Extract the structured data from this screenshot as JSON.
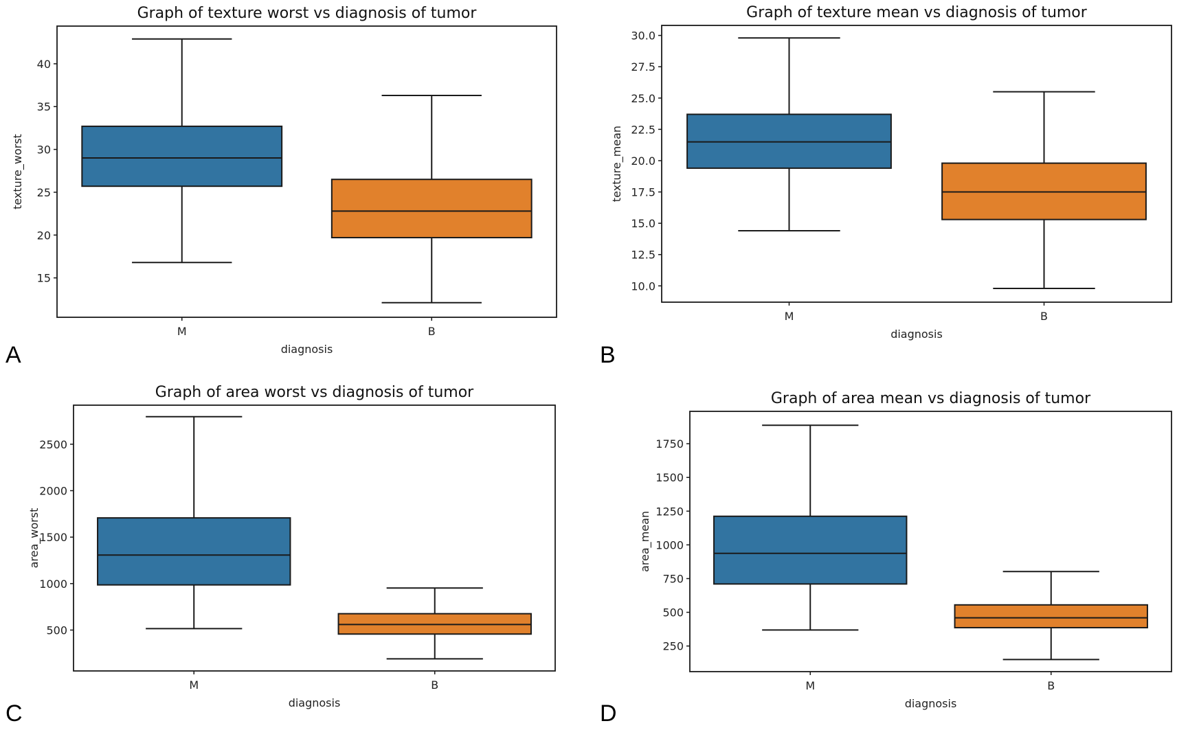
{
  "figure": {
    "panel_letters": [
      "A",
      "B",
      "C",
      "D"
    ]
  },
  "colors": {
    "M": "#3274a1",
    "B": "#e1812c",
    "line": "#1a1a1a"
  },
  "chart_data": [
    {
      "id": "A",
      "type": "box",
      "title": "Graph of texture worst vs diagnosis of tumor",
      "xlabel": "diagnosis",
      "ylabel": "texture_worst",
      "categories": [
        "M",
        "B"
      ],
      "ylim": [
        10.4,
        44.4
      ],
      "yticks": [
        15,
        20,
        25,
        30,
        35,
        40
      ],
      "ytick_labels": [
        "15",
        "20",
        "25",
        "30",
        "35",
        "40"
      ],
      "boxes": [
        {
          "category": "M",
          "whisker_low": 16.8,
          "q1": 25.7,
          "median": 29.0,
          "q3": 32.7,
          "whisker_high": 42.9
        },
        {
          "category": "B",
          "whisker_low": 12.1,
          "q1": 19.7,
          "median": 22.8,
          "q3": 26.5,
          "whisker_high": 36.3
        }
      ]
    },
    {
      "id": "B",
      "type": "box",
      "title": "Graph of texture mean vs diagnosis of tumor",
      "xlabel": "diagnosis",
      "ylabel": "texture_mean",
      "categories": [
        "M",
        "B"
      ],
      "ylim": [
        8.7,
        30.8
      ],
      "yticks": [
        10.0,
        12.5,
        15.0,
        17.5,
        20.0,
        22.5,
        25.0,
        27.5,
        30.0
      ],
      "ytick_labels": [
        "10.0",
        "12.5",
        "15.0",
        "17.5",
        "20.0",
        "22.5",
        "25.0",
        "27.5",
        "30.0"
      ],
      "boxes": [
        {
          "category": "M",
          "whisker_low": 14.4,
          "q1": 19.4,
          "median": 21.5,
          "q3": 23.7,
          "whisker_high": 29.8
        },
        {
          "category": "B",
          "whisker_low": 9.8,
          "q1": 15.3,
          "median": 17.5,
          "q3": 19.8,
          "whisker_high": 25.5
        }
      ]
    },
    {
      "id": "C",
      "type": "box",
      "title": "Graph of area worst vs diagnosis of tumor",
      "xlabel": "diagnosis",
      "ylabel": "area_worst",
      "categories": [
        "M",
        "B"
      ],
      "ylim": [
        60,
        2920
      ],
      "yticks": [
        500,
        1000,
        1500,
        2000,
        2500
      ],
      "ytick_labels": [
        "500",
        "1000",
        "1500",
        "2000",
        "2500"
      ],
      "boxes": [
        {
          "category": "M",
          "whisker_low": 515,
          "q1": 986,
          "median": 1307,
          "q3": 1707,
          "whisker_high": 2796
        },
        {
          "category": "B",
          "whisker_low": 190,
          "q1": 457,
          "median": 560,
          "q3": 676,
          "whisker_high": 952
        }
      ]
    },
    {
      "id": "D",
      "type": "box",
      "title": "Graph of area mean vs diagnosis of tumor",
      "xlabel": "diagnosis",
      "ylabel": "area_mean",
      "categories": [
        "M",
        "B"
      ],
      "ylim": [
        60,
        1990
      ],
      "yticks": [
        250,
        500,
        750,
        1000,
        1250,
        1500,
        1750
      ],
      "ytick_labels": [
        "250",
        "500",
        "750",
        "1000",
        "1250",
        "1500",
        "1750"
      ],
      "boxes": [
        {
          "category": "M",
          "whisker_low": 369,
          "q1": 710,
          "median": 937,
          "q3": 1212,
          "whisker_high": 1887
        },
        {
          "category": "B",
          "whisker_low": 150,
          "q1": 386,
          "median": 459,
          "q3": 555,
          "whisker_high": 802
        }
      ]
    }
  ]
}
